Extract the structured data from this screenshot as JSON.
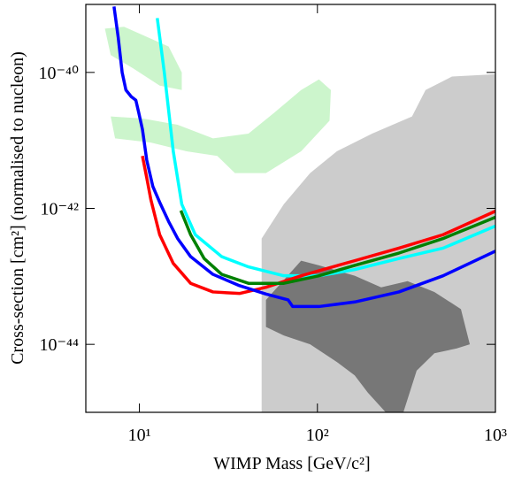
{
  "chart_data": {
    "type": "line",
    "x_label": "WIMP Mass [GeV/c²]",
    "y_label": "Cross-section [cm²] (normalised to nucleon)",
    "x_log": true,
    "y_log": true,
    "xlim": [
      5,
      1000
    ],
    "ylim": [
      1e-45,
      1e-39
    ],
    "xticks": [
      {
        "value": 10,
        "label": "10¹"
      },
      {
        "value": 100,
        "label": "10²"
      },
      {
        "value": 1000,
        "label": "10³"
      }
    ],
    "yticks": [
      {
        "value": 1e-44,
        "label": "10⁻⁴⁴"
      },
      {
        "value": 1e-42,
        "label": "10⁻⁴²"
      },
      {
        "value": 1e-40,
        "label": "10⁻⁴⁰"
      }
    ],
    "regions": [
      {
        "color": "#cccccc",
        "x": [
          48.6,
          48.6,
          64.7,
          91,
          128.6,
          203,
          340,
          405,
          570,
          1000,
          1000
        ],
        "values": [
          1e-45,
          3.6e-43,
          1.15e-42,
          3.3e-42,
          6.9e-42,
          1.26e-41,
          2.25e-41,
          5.5e-41,
          8.7e-41,
          9.4e-41,
          1e-45
        ]
      },
      {
        "color": "#777777",
        "x": [
          51.4,
          81,
          102,
          162,
          228,
          321,
          454,
          640,
          718,
          604,
          454,
          361,
          304,
          242,
          192,
          162,
          128.6,
          91,
          64.7,
          51.4
        ],
        "values": [
          4.5e-44,
          1.7e-43,
          1.45e-43,
          1.02e-43,
          6.9e-44,
          8.5e-44,
          5.9e-44,
          3.3e-44,
          1e-44,
          8.7e-45,
          7.4e-45,
          4.1e-45,
          1e-45,
          1e-45,
          1.95e-45,
          3.5e-45,
          5.5e-45,
          1e-44,
          1.35e-44,
          1.8e-44
        ]
      },
      {
        "color": "#ccf5cc",
        "x": [
          6.4,
          8.2,
          14.6,
          17.3,
          17.3,
          13,
          9.2,
          6.9
        ],
        "values": [
          4.4e-40,
          4.7e-40,
          2.4e-40,
          1e-40,
          5.5e-41,
          6.4e-41,
          1.15e-40,
          1.8e-40
        ]
      },
      {
        "color": "#ccf5cc",
        "x": [
          6.9,
          10.4,
          16.4,
          25.9,
          41,
          57.7,
          81,
          102,
          119,
          117,
          81,
          51.4,
          34.4,
          27.4,
          18.4,
          11.6,
          7.3
        ],
        "values": [
          2.25e-41,
          2.1e-41,
          1.7e-41,
          1.07e-41,
          1.26e-41,
          2.6e-41,
          5.5e-41,
          7.9e-41,
          5.5e-41,
          1.95e-41,
          6.9e-42,
          3.3e-42,
          3.3e-42,
          5.9e-42,
          6.9e-42,
          9.3e-42,
          1.07e-41
        ]
      }
    ],
    "series": [
      {
        "color": "#00ffff",
        "x": [
          12.6,
          13.8,
          15.5,
          17.3,
          20.6,
          29,
          41,
          64.7,
          102,
          162,
          287,
          508,
          1000
        ],
        "values": [
          6.3e-40,
          1e-40,
          6.9e-42,
          1.15e-42,
          4.1e-43,
          1.95e-43,
          1.38e-43,
          1.02e-43,
          1.02e-43,
          1.26e-43,
          1.83e-43,
          2.6e-43,
          5.5e-43
        ]
      },
      {
        "color": "#ff0000",
        "x": [
          10.4,
          11,
          11.6,
          13,
          15.5,
          19.4,
          25.9,
          36.5,
          51.4,
          81,
          162,
          287,
          508,
          1000
        ],
        "values": [
          5.9e-42,
          2.8e-42,
          1.34e-42,
          4.1e-43,
          1.55e-43,
          7.9e-44,
          5.9e-44,
          5.6e-44,
          6.9e-44,
          1.02e-43,
          1.7e-43,
          2.6e-43,
          4.1e-43,
          9.1e-43
        ]
      },
      {
        "color": "#008000",
        "x": [
          17.1,
          19.4,
          23.1,
          29,
          41,
          64.7,
          102,
          162,
          287,
          508,
          1000
        ],
        "values": [
          9.3e-43,
          4.1e-43,
          1.83e-43,
          1.07e-43,
          7.9e-44,
          7.9e-44,
          1.02e-43,
          1.45e-43,
          2.2e-43,
          3.6e-43,
          7.4e-43
        ]
      },
      {
        "color": "#0000ff",
        "x": [
          7.2,
          7.6,
          8,
          8.4,
          9,
          9.55,
          9.9,
          10.4,
          11,
          11.9,
          13,
          14.6,
          16.4,
          19.4,
          25.9,
          36.5,
          51.4,
          68.5,
          72.6,
          102,
          162,
          287,
          508,
          1000
        ],
        "values": [
          9.3e-40,
          3.3e-40,
          1e-40,
          5.5e-41,
          4.4e-41,
          3.9e-41,
          2.6e-41,
          1.45e-41,
          5.1e-42,
          2.1e-42,
          1.23e-42,
          6.4e-43,
          3.6e-43,
          1.95e-43,
          1.07e-43,
          7.3e-44,
          5.5e-44,
          4.5e-44,
          3.6e-44,
          3.6e-44,
          4.2e-44,
          5.9e-44,
          1.02e-43,
          2.35e-43
        ]
      }
    ]
  }
}
